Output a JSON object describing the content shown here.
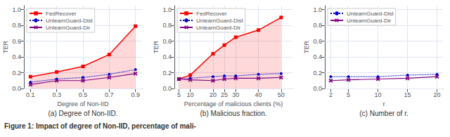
{
  "title": "Figure 1: Impact of degree of Non-IID, percentage of mali-",
  "chart_data": [
    {
      "type": "line",
      "title": "(a) Degree of Non-IID.",
      "x_label": "Degree of Non-IID",
      "y_label": "TER",
      "x": [
        0.1,
        0.3,
        0.5,
        0.7,
        0.9
      ],
      "series": [
        {
          "name": "FedRecover",
          "type": "area",
          "color": "#ff0000",
          "marker": "square",
          "line_style": "solid",
          "values": [
            0.15,
            0.21,
            0.28,
            0.43,
            0.79
          ]
        },
        {
          "name": "UnlearnGuard-Dist",
          "type": "line",
          "color": "#0000cc",
          "marker": "point",
          "line_style": "dotted",
          "values": [
            0.08,
            0.12,
            0.14,
            0.18,
            0.24
          ]
        },
        {
          "name": "UnlearnGuard-Dir",
          "type": "line",
          "color": "#800080",
          "marker": "x",
          "line_style": "solid",
          "values": [
            0.05,
            0.1,
            0.1,
            0.14,
            0.19
          ]
        }
      ],
      "xlim": [
        0.05,
        0.95
      ],
      "ylim": [
        0.0,
        1.05
      ],
      "xticks": [
        0.1,
        0.3,
        0.5,
        0.7,
        0.9
      ],
      "yticks": [
        {
          "value": 0,
          "label": "0.0"
        },
        0.2,
        0.4,
        0.6,
        0.8,
        {
          "value": 1,
          "label": "1.0"
        }
      ],
      "grid": true,
      "legend": "upper left"
    },
    {
      "type": "line",
      "title": "(b) Malicious fraction.",
      "x_label": "Percentage of malicious clients (%)",
      "y_label": "TER",
      "x": [
        5,
        10,
        20,
        25,
        30,
        40,
        50
      ],
      "series": [
        {
          "name": "FedRecover",
          "type": "area",
          "color": "#ff0000",
          "marker": "square",
          "line_style": "solid",
          "values": [
            0.12,
            0.17,
            0.44,
            0.55,
            0.65,
            0.74,
            0.9
          ]
        },
        {
          "name": "UnlearnGuard-Dist",
          "type": "line",
          "color": "#0000cc",
          "marker": "point",
          "line_style": "dotted",
          "values": [
            0.12,
            0.13,
            0.15,
            0.16,
            0.16,
            0.18,
            0.19
          ]
        },
        {
          "name": "UnlearnGuard-Dir",
          "type": "line",
          "color": "#800080",
          "marker": "x",
          "line_style": "solid",
          "values": [
            0.12,
            0.11,
            0.1,
            0.12,
            0.13,
            0.13,
            0.14
          ]
        }
      ],
      "xlim": [
        3,
        55
      ],
      "ylim": [
        0.0,
        1.05
      ],
      "xticks": [
        5,
        10,
        20,
        25,
        30,
        40,
        50
      ],
      "yticks": [
        {
          "value": 0,
          "label": "0.0"
        },
        0.2,
        0.4,
        0.6,
        0.8,
        {
          "value": 1,
          "label": "1.0"
        }
      ],
      "grid": true,
      "legend": "upper left"
    },
    {
      "type": "line",
      "title": "(c) Number of r.",
      "x_label": "r",
      "y_label": "TER",
      "x": [
        2,
        5,
        10,
        15,
        20
      ],
      "series": [
        {
          "name": "UnlearnGuard-Dist",
          "type": "line",
          "color": "#0000cc",
          "marker": "point",
          "line_style": "dotted",
          "values": [
            0.15,
            0.15,
            0.15,
            0.17,
            0.18
          ]
        },
        {
          "name": "UnlearnGuard-Dir",
          "type": "line",
          "color": "#800080",
          "marker": "x",
          "line_style": "solid",
          "values": [
            0.1,
            0.11,
            0.12,
            0.13,
            0.15
          ]
        }
      ],
      "xlim": [
        1,
        21
      ],
      "ylim": [
        0.0,
        1.05
      ],
      "xticks": [
        2,
        5,
        10,
        15,
        20
      ],
      "yticks": [
        {
          "value": 0,
          "label": "0.0"
        },
        0.2,
        0.4,
        0.6,
        0.8,
        {
          "value": 1,
          "label": "1.0"
        }
      ],
      "grid": true,
      "legend": "upper left"
    }
  ]
}
